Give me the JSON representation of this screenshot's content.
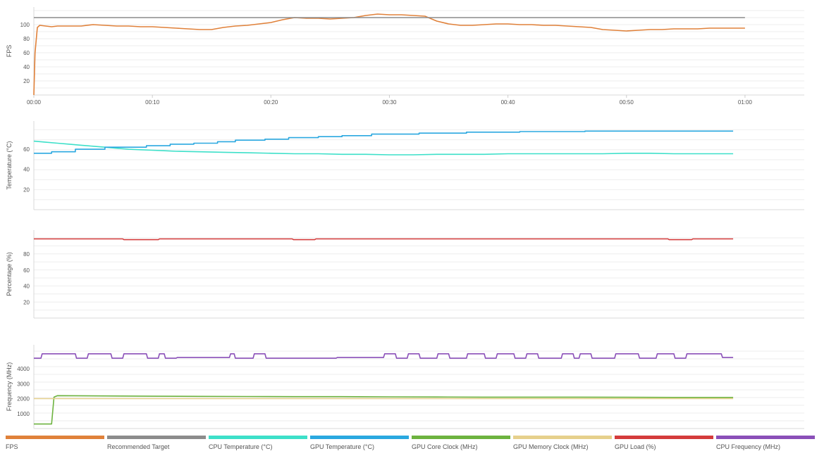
{
  "chart_data": [
    {
      "type": "line",
      "ylabel": "FPS",
      "ylim": [
        0,
        125
      ],
      "y_ticks": [
        "20",
        "40",
        "60",
        "80",
        "100"
      ],
      "x_ticks": [
        "00:00",
        "00:10",
        "00:20",
        "00:30",
        "00:40",
        "00:50",
        "01:00"
      ],
      "xlim": [
        0,
        65
      ],
      "series": [
        {
          "name": "FPS",
          "color": "#e0813a",
          "x": [
            0,
            0.1,
            0.3,
            0.5,
            1,
            1.5,
            2,
            3,
            4,
            5,
            6,
            7,
            8,
            9,
            10,
            11,
            12,
            13,
            14,
            15,
            16,
            17,
            18,
            19,
            20,
            21,
            22,
            23,
            24,
            25,
            26,
            27,
            28,
            29,
            30,
            31,
            32,
            33,
            34,
            35,
            36,
            37,
            38,
            39,
            40,
            41,
            42,
            43,
            44,
            45,
            46,
            47,
            48,
            49,
            50,
            51,
            52,
            53,
            54,
            55,
            56,
            57,
            58,
            59,
            60
          ],
          "y": [
            0,
            60,
            96,
            99,
            98,
            97,
            98,
            98,
            98,
            100,
            99,
            98,
            98,
            97,
            97,
            96,
            95,
            94,
            93,
            93,
            96,
            98,
            99,
            101,
            103,
            107,
            110,
            109,
            109,
            108,
            109,
            110,
            113,
            115,
            114,
            114,
            113,
            112,
            105,
            101,
            99,
            99,
            100,
            101,
            101,
            100,
            100,
            99,
            99,
            98,
            97,
            96,
            93,
            92,
            91,
            92,
            93,
            93,
            94,
            94,
            94,
            95,
            95,
            95,
            95
          ]
        },
        {
          "name": "Recommended Target",
          "color": "#8c8c8c",
          "x": [
            0,
            60
          ],
          "y": [
            110,
            110
          ]
        }
      ]
    },
    {
      "type": "line",
      "ylabel": "Temperature (°C)",
      "ylim": [
        0,
        88
      ],
      "y_ticks": [
        "20",
        "40",
        "60"
      ],
      "xlim": [
        0,
        65
      ],
      "series": [
        {
          "name": "CPU Temperature (°C)",
          "color": "#3de0c9",
          "x": [
            0,
            1,
            2,
            3,
            4,
            5,
            6,
            7,
            8,
            9,
            10,
            11,
            12,
            14,
            16,
            18,
            20,
            22,
            24,
            26,
            28,
            30,
            32,
            34,
            36,
            38,
            40,
            42,
            44,
            46,
            48,
            50,
            52,
            54,
            56,
            58,
            59
          ],
          "y": [
            68,
            67,
            66,
            65,
            64,
            63,
            62,
            61,
            60,
            59.5,
            59,
            58.5,
            58,
            57.5,
            57,
            56.5,
            56,
            55.5,
            55.5,
            55,
            55,
            54.5,
            54.5,
            55,
            55,
            55,
            55.5,
            55.5,
            55.5,
            55.5,
            55.5,
            56,
            56,
            55.5,
            55.5,
            55.5,
            55.5
          ]
        },
        {
          "name": "GPU Temperature (°C)",
          "color": "#2aa8e0",
          "x": [
            0,
            1.5,
            1.5,
            3.5,
            3.5,
            6,
            6,
            9.5,
            9.5,
            11.5,
            11.5,
            13.5,
            13.5,
            15.5,
            15.5,
            17,
            17,
            19.5,
            19.5,
            21.5,
            21.5,
            24,
            24,
            26,
            26,
            28.5,
            28.5,
            32.5,
            32.5,
            36.5,
            36.5,
            41,
            41,
            46.5,
            46.5,
            59
          ],
          "y": [
            56,
            56,
            57.5,
            57.5,
            60,
            60,
            62,
            62,
            63.5,
            63.5,
            65,
            65,
            66,
            66,
            67.5,
            67.5,
            69,
            69,
            70,
            70,
            71.5,
            71.5,
            72.5,
            72.5,
            73.5,
            73.5,
            75,
            75,
            76,
            76,
            77,
            77,
            77.5,
            77.5,
            78,
            78
          ]
        }
      ]
    },
    {
      "type": "line",
      "ylabel": "Percentage (%)",
      "ylim": [
        0,
        110
      ],
      "y_ticks": [
        "20",
        "40",
        "60",
        "80"
      ],
      "xlim": [
        0,
        65
      ],
      "series": [
        {
          "name": "GPU Load (%)",
          "color": "#d43b3b",
          "x": [
            0,
            7.5,
            7.6,
            10.5,
            10.6,
            21.8,
            21.9,
            23.7,
            23.8,
            53.5,
            53.6,
            55.5,
            55.6,
            59
          ],
          "y": [
            99,
            99,
            98,
            98,
            99,
            99,
            98,
            98,
            99,
            99,
            98,
            98,
            99,
            99
          ]
        }
      ]
    },
    {
      "type": "line",
      "ylabel": "Frequency (MHz)",
      "ylim": [
        0,
        5600
      ],
      "y_ticks": [
        "1000",
        "2000",
        "3000",
        "4000"
      ],
      "xlim": [
        0,
        65
      ],
      "series": [
        {
          "name": "GPU Core Clock (MHz)",
          "color": "#6db33f",
          "x": [
            0,
            1.5,
            1.7,
            2,
            6,
            10,
            14,
            18,
            22,
            26,
            30,
            34,
            38,
            42,
            46,
            50,
            54,
            59
          ],
          "y": [
            300,
            300,
            2100,
            2200,
            2180,
            2160,
            2150,
            2140,
            2130,
            2130,
            2120,
            2110,
            2100,
            2100,
            2100,
            2090,
            2080,
            2080
          ]
        },
        {
          "name": "GPU Memory Clock (MHz)",
          "color": "#e6d08c",
          "x": [
            0,
            59
          ],
          "y": [
            2000,
            2000
          ]
        },
        {
          "name": "CPU Frequency (MHz)",
          "color": "#8a4fb8",
          "x": [
            0,
            0.6,
            0.7,
            3.5,
            3.6,
            4.5,
            4.6,
            6.5,
            6.6,
            7.5,
            7.6,
            9.5,
            9.6,
            10.5,
            10.6,
            11,
            11.1,
            12,
            12.1,
            16.5,
            16.6,
            16.9,
            17,
            18.5,
            18.6,
            19.5,
            19.6,
            25.5,
            25.6,
            29.5,
            29.6,
            30.5,
            30.6,
            31.5,
            31.6,
            32.5,
            32.6,
            34,
            34.1,
            35,
            35.1,
            36.5,
            36.6,
            38,
            38.1,
            39,
            39.1,
            40.5,
            40.6,
            41.5,
            41.6,
            42.5,
            42.6,
            44.5,
            44.6,
            45.5,
            45.6,
            46,
            46.1,
            47,
            47.1,
            49,
            49.1,
            51,
            51.1,
            52.5,
            52.6,
            54,
            54.1,
            55,
            55.1,
            58,
            58.1,
            59
          ],
          "y": [
            4700,
            4700,
            5000,
            5000,
            4700,
            4700,
            5000,
            5000,
            4700,
            4700,
            5000,
            5000,
            4700,
            4700,
            5000,
            5000,
            4700,
            4700,
            4750,
            4750,
            5000,
            5000,
            4700,
            4700,
            5000,
            5000,
            4700,
            4700,
            4750,
            4750,
            5000,
            5000,
            4700,
            4700,
            5000,
            5000,
            4700,
            4700,
            5000,
            5000,
            4700,
            4700,
            5000,
            5000,
            4700,
            4700,
            5000,
            5000,
            4700,
            4700,
            5000,
            5000,
            4700,
            4700,
            5000,
            5000,
            4700,
            4700,
            5000,
            5000,
            4700,
            4700,
            5000,
            5000,
            4700,
            4700,
            5000,
            5000,
            4700,
            4700,
            5000,
            5000,
            4750,
            4750
          ]
        }
      ]
    }
  ],
  "legend": [
    {
      "label": "FPS",
      "color": "#e0813a"
    },
    {
      "label": "Recommended Target",
      "color": "#8c8c8c"
    },
    {
      "label": "CPU Temperature (°C)",
      "color": "#3de0c9"
    },
    {
      "label": "GPU Temperature (°C)",
      "color": "#2aa8e0"
    },
    {
      "label": "GPU Core Clock (MHz)",
      "color": "#6db33f"
    },
    {
      "label": "GPU Memory Clock (MHz)",
      "color": "#e6d08c"
    },
    {
      "label": "GPU Load (%)",
      "color": "#d43b3b"
    },
    {
      "label": "CPU Frequency (MHz)",
      "color": "#8a4fb8"
    }
  ]
}
